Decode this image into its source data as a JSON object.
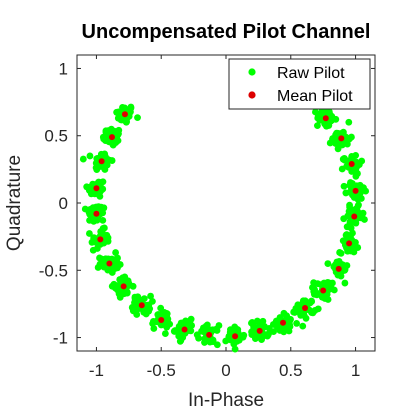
{
  "chart_data": {
    "type": "scatter",
    "title": "Uncompensated Pilot Channel",
    "xlabel": "In-Phase",
    "ylabel": "Quadrature",
    "xlim": [
      -1.15,
      1.15
    ],
    "ylim": [
      -1.1,
      1.1
    ],
    "xticks": [
      -1,
      -0.5,
      0,
      0.5,
      1
    ],
    "xtick_labels": [
      "-1",
      "-0.5",
      "0",
      "0.5",
      "1"
    ],
    "yticks": [
      -1,
      -0.5,
      0,
      0.5,
      1
    ],
    "ytick_labels": [
      "-1",
      "-0.5",
      "0",
      "0.5",
      "1"
    ],
    "grid": false,
    "legend_position": "top-right",
    "series": [
      {
        "name": "Raw Pilot",
        "color": "#00ff00",
        "marker": "filled-circle",
        "cluster_centers": [
          [
            -0.78,
            0.66
          ],
          [
            -0.88,
            0.49
          ],
          [
            -0.96,
            0.31
          ],
          [
            -1.0,
            0.11
          ],
          [
            -1.0,
            -0.08
          ],
          [
            -0.97,
            -0.27
          ],
          [
            -0.9,
            -0.45
          ],
          [
            -0.79,
            -0.62
          ],
          [
            -0.65,
            -0.76
          ],
          [
            -0.5,
            -0.87
          ],
          [
            -0.32,
            -0.94
          ],
          [
            -0.13,
            -0.98
          ],
          [
            0.07,
            -0.99
          ],
          [
            0.26,
            -0.95
          ],
          [
            0.44,
            -0.89
          ],
          [
            0.61,
            -0.78
          ],
          [
            0.75,
            -0.65
          ],
          [
            0.87,
            -0.49
          ],
          [
            0.95,
            -0.3
          ],
          [
            0.99,
            -0.1
          ],
          [
            1.0,
            0.09
          ],
          [
            0.97,
            0.29
          ],
          [
            0.89,
            0.48
          ],
          [
            0.77,
            0.63
          ]
        ],
        "points_per_cluster": 40,
        "cluster_spread": 0.035
      },
      {
        "name": "Mean Pilot",
        "color": "#dd0000",
        "marker": "filled-circle",
        "x": [
          -0.78,
          -0.88,
          -0.96,
          -1.0,
          -1.0,
          -0.97,
          -0.9,
          -0.79,
          -0.65,
          -0.5,
          -0.32,
          -0.13,
          0.07,
          0.26,
          0.44,
          0.61,
          0.75,
          0.87,
          0.95,
          0.99,
          1.0,
          0.97,
          0.89,
          0.77
        ],
        "y": [
          0.66,
          0.49,
          0.31,
          0.11,
          -0.08,
          -0.27,
          -0.45,
          -0.62,
          -0.76,
          -0.87,
          -0.94,
          -0.98,
          -0.99,
          -0.95,
          -0.89,
          -0.78,
          -0.65,
          -0.49,
          -0.3,
          -0.1,
          0.09,
          0.29,
          0.48,
          0.63
        ]
      }
    ]
  }
}
